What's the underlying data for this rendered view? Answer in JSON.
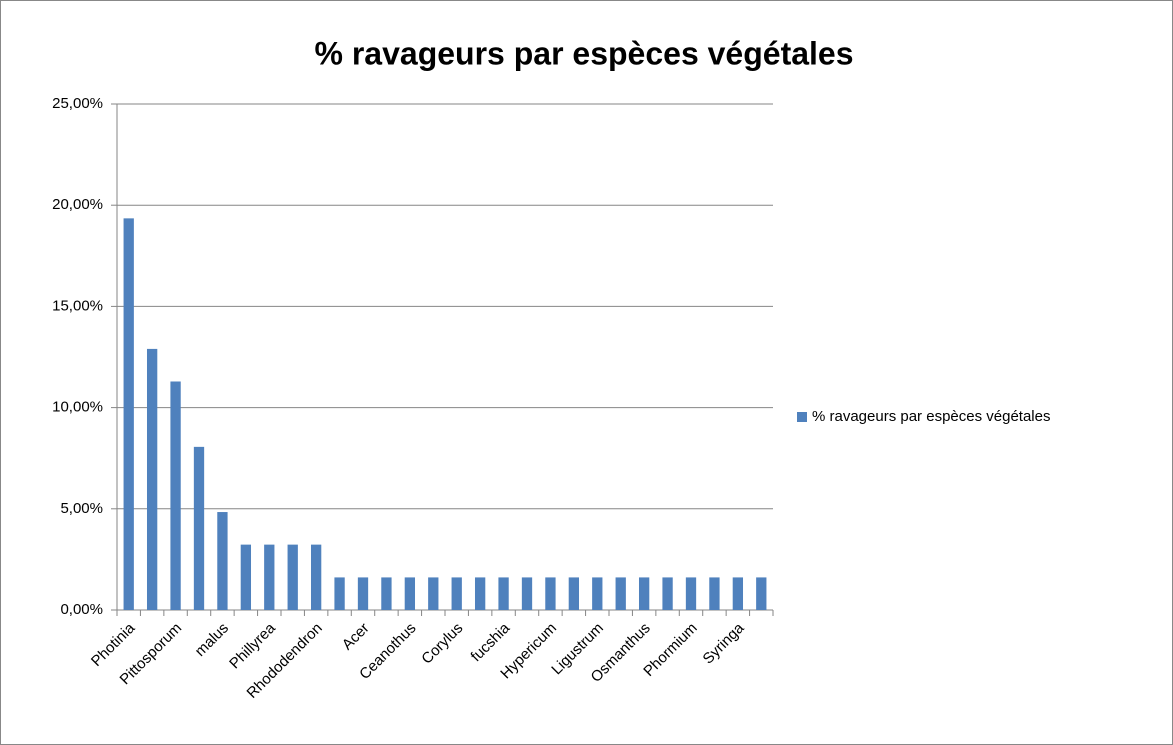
{
  "chart_data": {
    "type": "bar",
    "title": "% ravageurs par espèces végétales",
    "categories": [
      "Photinia",
      null,
      "Pittosporum",
      null,
      "malus",
      null,
      "Phillyrea",
      null,
      "Rhododendron",
      null,
      "Acer",
      null,
      "Ceanothus",
      null,
      "Corylus",
      null,
      "fucshia",
      null,
      "Hypericum",
      null,
      "Ligustrum",
      null,
      "Osmanthus",
      null,
      "Phormium",
      null,
      "Syringa",
      null
    ],
    "series": [
      {
        "name": "% ravageurs par espèces végétales",
        "color": "#4f81bd",
        "values": [
          19.35,
          12.9,
          11.29,
          8.06,
          4.84,
          3.23,
          3.23,
          3.23,
          3.23,
          1.61,
          1.61,
          1.61,
          1.61,
          1.61,
          1.61,
          1.61,
          1.61,
          1.61,
          1.61,
          1.61,
          1.61,
          1.61,
          1.61,
          1.61,
          1.61,
          1.61,
          1.61,
          1.61
        ]
      }
    ],
    "ylim": [
      0,
      25
    ],
    "yticks": [
      {
        "value": 0,
        "label": "0,00%"
      },
      {
        "value": 5,
        "label": "5,00%"
      },
      {
        "value": 10,
        "label": "10,00%"
      },
      {
        "value": 15,
        "label": "15,00%"
      },
      {
        "value": 20,
        "label": "20,00%"
      },
      {
        "value": 25,
        "label": "25,00%"
      }
    ],
    "grid": true,
    "legend": "right"
  }
}
